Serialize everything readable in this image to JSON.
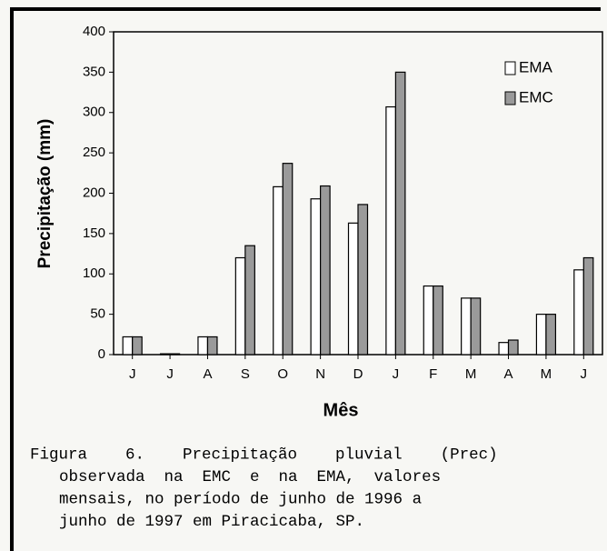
{
  "chart_data": {
    "type": "bar",
    "x_label": "Mês",
    "y_label": "Precipitação (mm)",
    "categories": [
      "J",
      "J",
      "A",
      "S",
      "O",
      "N",
      "D",
      "J",
      "F",
      "M",
      "A",
      "M",
      "J"
    ],
    "series": [
      {
        "name": "EMA",
        "color": "#ffffff",
        "values": [
          22,
          1,
          22,
          120,
          208,
          193,
          163,
          307,
          85,
          70,
          15,
          50,
          105
        ]
      },
      {
        "name": "EMC",
        "color": "#9a9a9a",
        "values": [
          22,
          1,
          22,
          135,
          237,
          209,
          186,
          350,
          85,
          70,
          18,
          50,
          120
        ]
      }
    ],
    "ylim": [
      0,
      400
    ],
    "yticks": [
      0,
      50,
      100,
      150,
      200,
      250,
      300,
      350,
      400
    ],
    "legend": "top-right"
  },
  "caption": [
    "Figura    6.    Precipitação    pluvial    (Prec)",
    "observada  na  EMC  e  na  EMA,  valores",
    "mensais, no período de junho de 1996 a",
    "junho de 1997 em Piracicaba, SP."
  ]
}
